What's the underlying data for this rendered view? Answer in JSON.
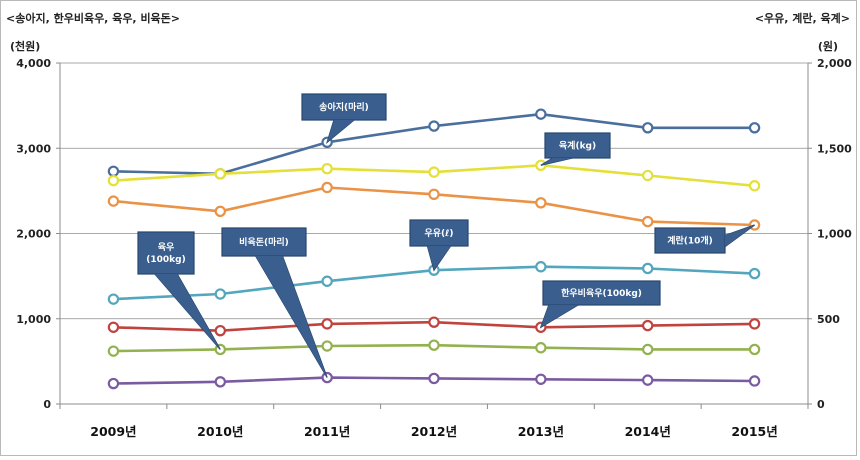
{
  "chart_data": {
    "type": "line",
    "left_axis_title": "<송아지, 한우비육우, 육우, 비육돈>",
    "left_axis_unit": "(천원)",
    "right_axis_title": "<우유, 계란, 육계>",
    "right_axis_unit": "(원)",
    "categories": [
      "2009년",
      "2010년",
      "2011년",
      "2012년",
      "2013년",
      "2014년",
      "2015년"
    ],
    "left_ylim": [
      0,
      4000
    ],
    "right_ylim": [
      0,
      2000
    ],
    "left_ticks": [
      "0",
      "1,000",
      "2,000",
      "3,000",
      "4,000"
    ],
    "right_ticks": [
      "0",
      "500",
      "1,000",
      "1,500",
      "2,000"
    ],
    "grid": true,
    "series": [
      {
        "name": "송아지(마리)",
        "axis": "left",
        "color": "#4a6f9d",
        "values": [
          2730,
          2700,
          3070,
          3260,
          3400,
          3240,
          3240
        ]
      },
      {
        "name": "육계(kg)",
        "axis": "right",
        "color": "#e4e03a",
        "values": [
          1310,
          1350,
          1380,
          1360,
          1400,
          1340,
          1280
        ]
      },
      {
        "name": "계란(10개)",
        "axis": "right",
        "color": "#ea9245",
        "values": [
          1190,
          1130,
          1270,
          1230,
          1180,
          1070,
          1050
        ]
      },
      {
        "name": "우유(ℓ)",
        "axis": "right",
        "color": "#52a6bd",
        "values": [
          615,
          645,
          720,
          785,
          805,
          795,
          765
        ]
      },
      {
        "name": "한우비육우(100kg)",
        "axis": "left",
        "color": "#c0433e",
        "values": [
          900,
          860,
          940,
          960,
          900,
          920,
          940
        ]
      },
      {
        "name": "육우(100kg)",
        "axis": "left",
        "color": "#93b24f",
        "values": [
          620,
          640,
          680,
          690,
          660,
          640,
          640
        ]
      },
      {
        "name": "비육돈(마리)",
        "axis": "left",
        "color": "#7a5aa0",
        "values": [
          240,
          260,
          310,
          300,
          290,
          280,
          270
        ]
      }
    ],
    "callouts": [
      {
        "series": "송아지(마리)",
        "lines": [
          "송아지(마리)"
        ]
      },
      {
        "series": "육계(kg)",
        "lines": [
          "육계(kg)"
        ]
      },
      {
        "series": "계란(10개)",
        "lines": [
          "계란(10개)"
        ]
      },
      {
        "series": "우유(ℓ)",
        "lines": [
          "우유(ℓ)"
        ]
      },
      {
        "series": "한우비육우(100kg)",
        "lines": [
          "한우비육우(100kg)"
        ]
      },
      {
        "series": "육우(100kg)",
        "lines": [
          "육우",
          "(100kg)"
        ]
      },
      {
        "series": "비육돈(마리)",
        "lines": [
          "비육돈(마리)"
        ]
      }
    ]
  }
}
